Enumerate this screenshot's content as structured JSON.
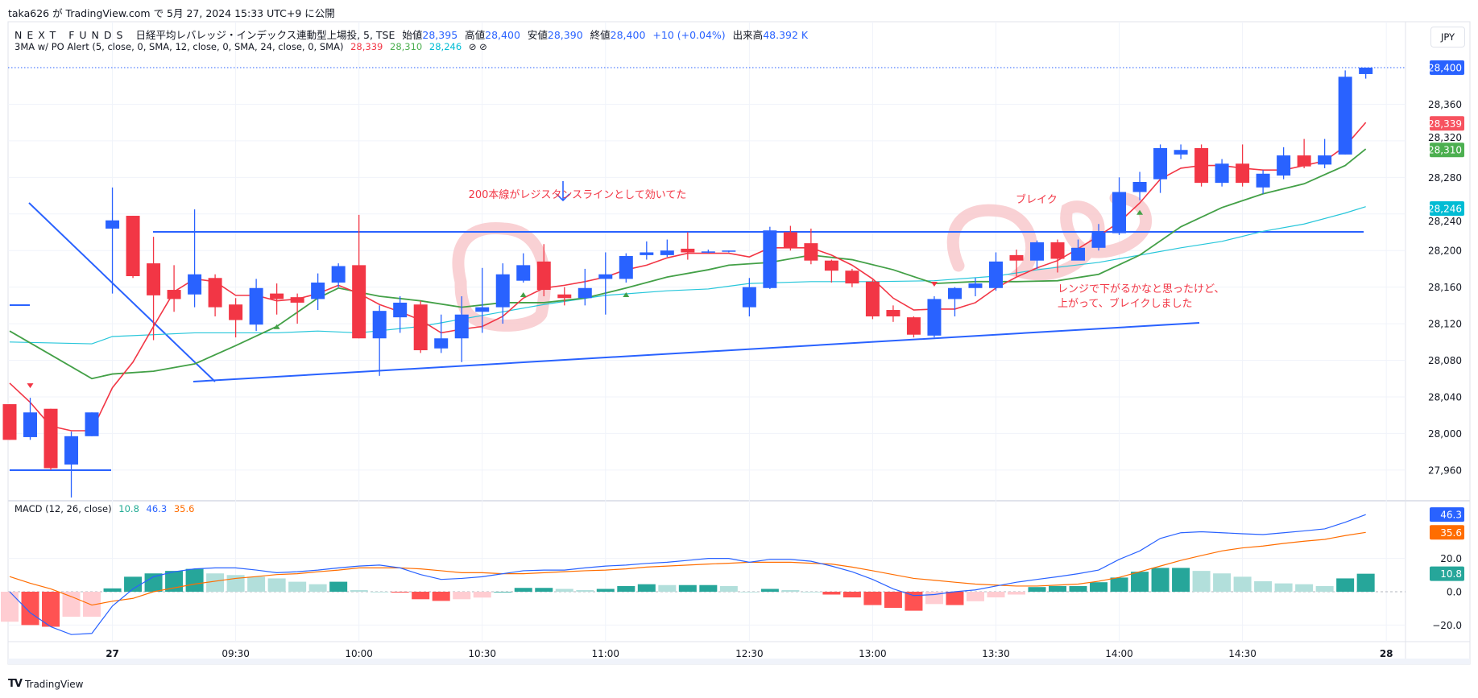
{
  "publish_line": "taka626 が TradingView.com で 5月 27, 2024 15:33 UTC+9 に公開",
  "legend": {
    "symbol": "NEXT FUNDS",
    "name": "日経平均レバレッジ・インデックス連動型上場投, 5, TSE",
    "open_label": "始値",
    "open": "28,395",
    "high_label": "高値",
    "high": "28,400",
    "low_label": "安値",
    "low": "28,390",
    "close_label": "終値",
    "close": "28,400",
    "change": "+10 (+0.04%)",
    "volume_label": "出来高",
    "volume": "48.392 K"
  },
  "indicator": {
    "name": "3MA w/ PO Alert (5, close, 0, SMA, 12, close, 0, SMA, 24, close, 0, SMA)",
    "v1": "28,339",
    "v2": "28,310",
    "v3": "28,246",
    "icons": "⊘ ⊘"
  },
  "currency_button": "JPY",
  "price_axis": {
    "ticks": [
      28360,
      28320,
      28280,
      28240,
      28200,
      28160,
      28120,
      28080,
      28040,
      28000,
      27960
    ],
    "tick_labels": [
      "28,360",
      "28,320",
      "28,280",
      "28,240",
      "28,200",
      "28,160",
      "28,120",
      "28,080",
      "28,040",
      "28,000",
      "27,960"
    ],
    "badges": [
      {
        "label": "28,400",
        "value": 28400,
        "color": "#2962ff"
      },
      {
        "label": "28,339",
        "value": 28339,
        "color": "#f7525f"
      },
      {
        "label": "28,310",
        "value": 28310,
        "color": "#4caf50"
      },
      {
        "label": "28,246",
        "value": 28246,
        "color": "#00bcd4"
      }
    ]
  },
  "macd": {
    "legend": "MACD (12, 26, close)",
    "hist_value": "10.8",
    "macd_value": "46.3",
    "signal_value": "35.6",
    "ticks": [
      20,
      0,
      -20
    ],
    "tick_labels": [
      "20.0",
      "0.0",
      "−20.0"
    ],
    "badges": [
      {
        "label": "46.3",
        "value": 46.3,
        "color": "#2962ff"
      },
      {
        "label": "35.6",
        "value": 35.6,
        "color": "#ff6d00"
      },
      {
        "label": "10.8",
        "value": 10.8,
        "color": "#26a69a"
      }
    ],
    "histogram": [
      -18,
      -20,
      -21,
      -15,
      -15,
      2,
      9,
      11,
      12.5,
      13.7,
      11,
      10,
      9,
      8,
      6,
      4.5,
      6,
      1,
      0,
      -0.5,
      -4.5,
      -5.5,
      -4.5,
      -3.5,
      0,
      2.3,
      2.3,
      1.7,
      1,
      1.7,
      3.4,
      4.5,
      4,
      4,
      4,
      3.4,
      0,
      1.7,
      1,
      0,
      -1.7,
      -3.4,
      -8,
      -9.7,
      -11.4,
      -7.4,
      -8,
      -5.7,
      -3.4,
      -1.7,
      2.8,
      3.4,
      3.4,
      5.7,
      8.5,
      12,
      14.3,
      14.3,
      12.5,
      11,
      9,
      6.3,
      5,
      4.5,
      3.4,
      8,
      10.8
    ],
    "macd_line": [
      0,
      -12.6,
      -21,
      -25.7,
      -25,
      -8.6,
      1.7,
      9,
      12,
      13.7,
      14.3,
      14.3,
      13,
      11.4,
      12,
      13,
      14.3,
      15.4,
      16,
      14.3,
      10.3,
      7.4,
      8,
      9,
      10.8,
      12.6,
      13,
      13,
      14.3,
      15.4,
      16,
      17,
      17.7,
      18.8,
      20,
      20,
      17.7,
      19.4,
      19.4,
      18.3,
      15.4,
      12,
      7.4,
      1.7,
      -2.3,
      -1.7,
      0,
      1.1,
      3.4,
      5.7,
      7.4,
      9,
      10.8,
      13,
      19.4,
      24.5,
      32,
      35.4,
      36,
      35.4,
      34.8,
      34.3,
      35.4,
      36.5,
      37.7,
      41.7,
      46.3
    ],
    "signal_line": [
      9.1,
      5.1,
      1.7,
      -2.9,
      -8,
      -5.7,
      -4,
      0,
      2.3,
      4.6,
      6.3,
      8,
      9.1,
      10.3,
      10.8,
      12,
      13,
      14.3,
      14.3,
      14.3,
      13.7,
      12.6,
      11.4,
      11.4,
      10.8,
      10.8,
      11.4,
      12,
      12.6,
      13,
      13.7,
      14.8,
      15.4,
      16,
      16.6,
      17.1,
      17.7,
      17.7,
      17.7,
      17.1,
      16.6,
      14.8,
      12.6,
      10.3,
      8,
      6.9,
      5.7,
      4.6,
      4,
      3.4,
      3.4,
      4,
      4.6,
      6.3,
      8.6,
      12,
      15.4,
      18.8,
      21.7,
      24.5,
      26.3,
      27.4,
      29,
      30.3,
      31.4,
      33.7,
      35.6
    ]
  },
  "time_axis": [
    {
      "label": "27",
      "bar": 5
    },
    {
      "label": "09:30",
      "bar": 11
    },
    {
      "label": "10:00",
      "bar": 17
    },
    {
      "label": "10:30",
      "bar": 23
    },
    {
      "label": "11:00",
      "bar": 29
    },
    {
      "label": "12:30",
      "bar": 36
    },
    {
      "label": "13:00",
      "bar": 42
    },
    {
      "label": "13:30",
      "bar": 48
    },
    {
      "label": "14:00",
      "bar": 54
    },
    {
      "label": "14:30",
      "bar": 60
    },
    {
      "label": "28",
      "bar": 67
    }
  ],
  "chart_data": {
    "type": "candlestick",
    "interval": "5",
    "colors": {
      "up": "#2962ff",
      "down": "#f23645",
      "ma5": "#f23645",
      "ma12": "#43a047",
      "ma24": "#26c6da"
    },
    "ohlc": [
      [
        28032,
        28032,
        27993,
        27993
      ],
      [
        27996,
        28039,
        27993,
        28023
      ],
      [
        28027,
        28027,
        27960,
        27962
      ],
      [
        27966,
        28002,
        27930,
        27997
      ],
      [
        27997,
        28023,
        27997,
        28023
      ],
      [
        28224,
        28269,
        28153,
        28233
      ],
      [
        28238,
        28238,
        28170,
        28172
      ],
      [
        28186,
        28215,
        28102,
        28151
      ],
      [
        28157,
        28184,
        28133,
        28147
      ],
      [
        28152,
        28245,
        28138,
        28174
      ],
      [
        28170,
        28174,
        28128,
        28138
      ],
      [
        28141,
        28148,
        28105,
        28124
      ],
      [
        28119,
        28169,
        28112,
        28159
      ],
      [
        28153,
        28164,
        28130,
        28147
      ],
      [
        28149,
        28153,
        28120,
        28143
      ],
      [
        28147,
        28175,
        28135,
        28165
      ],
      [
        28165,
        28186,
        28160,
        28183
      ],
      [
        28184,
        28239,
        28104,
        28104
      ],
      [
        28104,
        28140,
        28063,
        28134
      ],
      [
        28127,
        28150,
        28110,
        28143
      ],
      [
        28141,
        28145,
        28088,
        28091
      ],
      [
        28093,
        28130,
        28088,
        28104
      ],
      [
        28104,
        28150,
        28078,
        28130
      ],
      [
        28133,
        28181,
        28110,
        28138
      ],
      [
        28138,
        28186,
        28120,
        28174
      ],
      [
        28167,
        28197,
        28165,
        28184
      ],
      [
        28188,
        28207,
        28150,
        28157
      ],
      [
        28152,
        28160,
        28140,
        28148
      ],
      [
        28148,
        28180,
        28140,
        28159
      ],
      [
        28169,
        28198,
        28130,
        28174
      ],
      [
        28169,
        28197,
        28165,
        28194
      ],
      [
        28195,
        28210,
        28190,
        28198
      ],
      [
        28195,
        28212,
        28193,
        28200
      ],
      [
        28202,
        28220,
        28190,
        28198
      ],
      [
        28198,
        28201,
        28197,
        28199
      ],
      [
        28199,
        28200,
        28198,
        28200
      ],
      [
        28138,
        28170,
        28128,
        28160
      ],
      [
        28159,
        28226,
        28158,
        28222
      ],
      [
        28220,
        28227,
        28200,
        28203
      ],
      [
        28208,
        28224,
        28185,
        28189
      ],
      [
        28189,
        28190,
        28165,
        28178
      ],
      [
        28178,
        28180,
        28160,
        28164
      ],
      [
        28166,
        28168,
        28125,
        28128
      ],
      [
        28135,
        28140,
        28122,
        28128
      ],
      [
        28127,
        28128,
        28105,
        28108
      ],
      [
        28107,
        28150,
        28105,
        28147
      ],
      [
        28147,
        28160,
        28128,
        28159
      ],
      [
        28159,
        28170,
        28150,
        28164
      ],
      [
        28159,
        28198,
        28156,
        28188
      ],
      [
        28195,
        28201,
        28172,
        28189
      ],
      [
        28189,
        28211,
        28180,
        28209
      ],
      [
        28209,
        28212,
        28176,
        28191
      ],
      [
        28189,
        28212,
        28190,
        28203
      ],
      [
        28203,
        28229,
        28200,
        28220
      ],
      [
        28219,
        28280,
        28217,
        28264
      ],
      [
        28264,
        28286,
        28255,
        28275
      ],
      [
        28278,
        28316,
        28263,
        28312
      ],
      [
        28305,
        28316,
        28300,
        28310
      ],
      [
        28312,
        28316,
        28270,
        28274
      ],
      [
        28274,
        28300,
        28270,
        28295
      ],
      [
        28295,
        28316,
        28270,
        28274
      ],
      [
        28269,
        28288,
        28262,
        28284
      ],
      [
        28282,
        28313,
        28278,
        28304
      ],
      [
        28304,
        28322,
        28290,
        28292
      ],
      [
        28294,
        28322,
        28290,
        28304
      ],
      [
        28305,
        28397,
        28305,
        28390
      ],
      [
        28393,
        28400,
        28388,
        28400
      ]
    ],
    "ma5": [
      [
        0,
        28055
      ],
      [
        1,
        28034
      ],
      [
        2,
        28008
      ],
      [
        3,
        28003
      ],
      [
        4,
        28003
      ],
      [
        5,
        28050
      ],
      [
        6,
        28078
      ],
      [
        7,
        28117
      ],
      [
        8,
        28155
      ],
      [
        9,
        28169
      ],
      [
        10,
        28166
      ],
      [
        11,
        28151
      ],
      [
        12,
        28151
      ],
      [
        13,
        28145
      ],
      [
        14,
        28147
      ],
      [
        15,
        28153
      ],
      [
        16,
        28162
      ],
      [
        17,
        28153
      ],
      [
        18,
        28141
      ],
      [
        19,
        28133
      ],
      [
        20,
        28124
      ],
      [
        21,
        28110
      ],
      [
        22,
        28114
      ],
      [
        23,
        28117
      ],
      [
        24,
        28128
      ],
      [
        25,
        28148
      ],
      [
        26,
        28159
      ],
      [
        27,
        28162
      ],
      [
        28,
        28166
      ],
      [
        29,
        28171
      ],
      [
        30,
        28179
      ],
      [
        31,
        28184
      ],
      [
        32,
        28192
      ],
      [
        33,
        28197
      ],
      [
        34,
        28197
      ],
      [
        35,
        28197
      ],
      [
        36,
        28193
      ],
      [
        37,
        28203
      ],
      [
        38,
        28203
      ],
      [
        39,
        28203
      ],
      [
        40,
        28195
      ],
      [
        41,
        28184
      ],
      [
        42,
        28169
      ],
      [
        43,
        28148
      ],
      [
        44,
        28135
      ],
      [
        45,
        28136
      ],
      [
        46,
        28136
      ],
      [
        47,
        28143
      ],
      [
        48,
        28159
      ],
      [
        49,
        28171
      ],
      [
        50,
        28181
      ],
      [
        51,
        28189
      ],
      [
        52,
        28202
      ],
      [
        53,
        28216
      ],
      [
        54,
        28231
      ],
      [
        55,
        28252
      ],
      [
        56,
        28278
      ],
      [
        57,
        28290
      ],
      [
        58,
        28293
      ],
      [
        59,
        28293
      ],
      [
        60,
        28290
      ],
      [
        61,
        28288
      ],
      [
        62,
        28288
      ],
      [
        63,
        28293
      ],
      [
        64,
        28298
      ],
      [
        65,
        28314
      ],
      [
        66,
        28340
      ]
    ],
    "ma12": [
      [
        0,
        28112
      ],
      [
        2,
        28086
      ],
      [
        4,
        28060
      ],
      [
        5,
        28065
      ],
      [
        7,
        28068
      ],
      [
        9,
        28076
      ],
      [
        11,
        28096
      ],
      [
        13,
        28117
      ],
      [
        15,
        28148
      ],
      [
        16,
        28159
      ],
      [
        18,
        28150
      ],
      [
        20,
        28145
      ],
      [
        22,
        28138
      ],
      [
        24,
        28143
      ],
      [
        26,
        28143
      ],
      [
        28,
        28148
      ],
      [
        30,
        28159
      ],
      [
        32,
        28171
      ],
      [
        34,
        28179
      ],
      [
        35,
        28184
      ],
      [
        37,
        28187
      ],
      [
        39,
        28195
      ],
      [
        41,
        28190
      ],
      [
        43,
        28179
      ],
      [
        45,
        28164
      ],
      [
        47,
        28166
      ],
      [
        49,
        28166
      ],
      [
        51,
        28167
      ],
      [
        53,
        28174
      ],
      [
        55,
        28195
      ],
      [
        57,
        28226
      ],
      [
        59,
        28247
      ],
      [
        61,
        28262
      ],
      [
        63,
        28273
      ],
      [
        65,
        28293
      ],
      [
        66,
        28311
      ]
    ],
    "ma24": [
      [
        0,
        28100
      ],
      [
        4,
        28098
      ],
      [
        5,
        28106
      ],
      [
        9,
        28110
      ],
      [
        13,
        28110
      ],
      [
        15,
        28112
      ],
      [
        17,
        28110
      ],
      [
        20,
        28117
      ],
      [
        24,
        28133
      ],
      [
        26,
        28141
      ],
      [
        29,
        28151
      ],
      [
        32,
        28156
      ],
      [
        34,
        28158
      ],
      [
        36,
        28164
      ],
      [
        39,
        28166
      ],
      [
        42,
        28166
      ],
      [
        45,
        28167
      ],
      [
        48,
        28172
      ],
      [
        50,
        28179
      ],
      [
        53,
        28187
      ],
      [
        55,
        28195
      ],
      [
        57,
        28203
      ],
      [
        59,
        28210
      ],
      [
        61,
        28221
      ],
      [
        63,
        28229
      ],
      [
        65,
        28241
      ],
      [
        66,
        28248
      ]
    ],
    "signals_up": [
      13,
      25,
      30,
      55
    ],
    "signals_down": [
      1,
      45
    ],
    "last_price": 28400
  },
  "annotations": {
    "resistance_note": "200本線がレジスタンスラインとして効いてた",
    "break_note": "ブレイク",
    "range_note_line1": "レンジで下がるかなと思ったけど、",
    "range_note_line2": "上がって、ブレイクしました",
    "annotation_color": "#f23645",
    "line_color": "#2962ff",
    "highlight_color": "#f8c9cd"
  },
  "footer_logo": "TradingView"
}
